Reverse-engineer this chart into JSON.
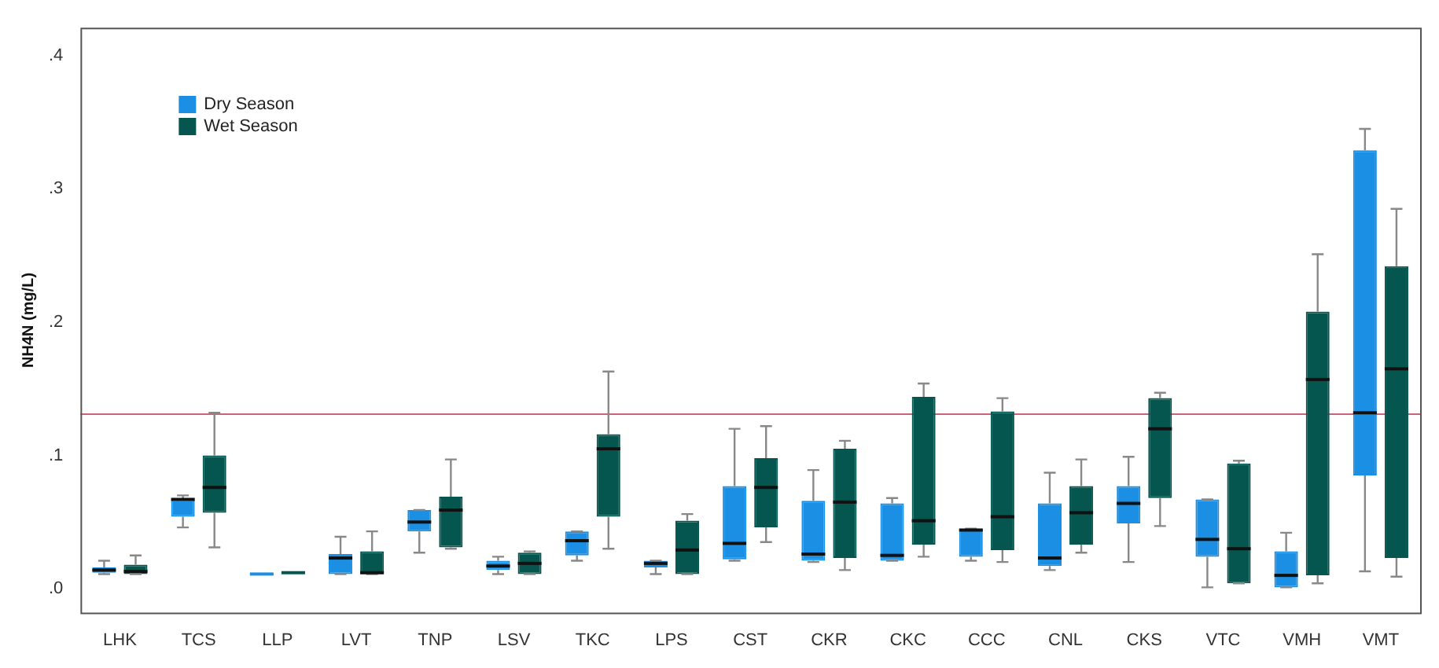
{
  "chart_data": {
    "type": "box",
    "ylabel": "NH4N (mg/L)",
    "categories": [
      "LHK",
      "TCS",
      "LLP",
      "LVT",
      "TNP",
      "LSV",
      "TKC",
      "LPS",
      "CST",
      "CKR",
      "CKC",
      "CCC",
      "CNL",
      "CKS",
      "VTC",
      "VMH",
      "VMT"
    ],
    "ylim": [
      -0.018,
      0.421
    ],
    "yticks": [
      {
        "value": 0,
        "label": ".0"
      },
      {
        "value": 0.1,
        "label": ".1"
      },
      {
        "value": 0.2,
        "label": ".2"
      },
      {
        "value": 0.3,
        "label": ".3"
      },
      {
        "value": 0.4,
        "label": ".4"
      }
    ],
    "legend": "top left",
    "ref_lines": [
      {
        "axis": "y",
        "value": 0.131,
        "color": "#c86478"
      }
    ],
    "series": [
      {
        "name": "Dry Season",
        "color": "#1a8fe3",
        "boxes": [
          {
            "low": 0.011,
            "q1": 0.012,
            "median": 0.014,
            "q3": 0.016,
            "high": 0.021
          },
          {
            "low": 0.046,
            "q1": 0.054,
            "median": 0.067,
            "q3": 0.067,
            "high": 0.07
          },
          {
            "low": 0.011,
            "q1": 0.011,
            "median": 0.011,
            "q3": 0.011,
            "high": 0.011
          },
          {
            "low": 0.011,
            "q1": 0.011,
            "median": 0.023,
            "q3": 0.026,
            "high": 0.039
          },
          {
            "low": 0.027,
            "q1": 0.043,
            "median": 0.05,
            "q3": 0.059,
            "high": 0.059
          },
          {
            "low": 0.011,
            "q1": 0.014,
            "median": 0.017,
            "q3": 0.021,
            "high": 0.024
          },
          {
            "low": 0.021,
            "q1": 0.025,
            "median": 0.036,
            "q3": 0.043,
            "high": 0.043
          },
          {
            "low": 0.011,
            "q1": 0.016,
            "median": 0.019,
            "q3": 0.021,
            "high": 0.021
          },
          {
            "low": 0.021,
            "q1": 0.022,
            "median": 0.034,
            "q3": 0.077,
            "high": 0.12
          },
          {
            "low": 0.02,
            "q1": 0.021,
            "median": 0.026,
            "q3": 0.066,
            "high": 0.089
          },
          {
            "low": 0.021,
            "q1": 0.021,
            "median": 0.025,
            "q3": 0.064,
            "high": 0.068
          },
          {
            "low": 0.021,
            "q1": 0.024,
            "median": 0.044,
            "q3": 0.045,
            "high": 0.045
          },
          {
            "low": 0.014,
            "q1": 0.017,
            "median": 0.023,
            "q3": 0.064,
            "high": 0.087
          },
          {
            "low": 0.02,
            "q1": 0.049,
            "median": 0.064,
            "q3": 0.077,
            "high": 0.099
          },
          {
            "low": 0.001,
            "q1": 0.024,
            "median": 0.037,
            "q3": 0.067,
            "high": 0.067
          },
          {
            "low": 0.001,
            "q1": 0.001,
            "median": 0.01,
            "q3": 0.028,
            "high": 0.042
          },
          {
            "low": 0.013,
            "q1": 0.085,
            "median": 0.132,
            "q3": 0.329,
            "high": 0.345
          }
        ]
      },
      {
        "name": "Wet Season",
        "color": "#04564f",
        "boxes": [
          {
            "low": 0.011,
            "q1": 0.011,
            "median": 0.013,
            "q3": 0.018,
            "high": 0.025
          },
          {
            "low": 0.031,
            "q1": 0.057,
            "median": 0.076,
            "q3": 0.1,
            "high": 0.132
          },
          {
            "low": 0.012,
            "q1": 0.012,
            "median": 0.012,
            "q3": 0.012,
            "high": 0.012
          },
          {
            "low": 0.011,
            "q1": 0.011,
            "median": 0.012,
            "q3": 0.028,
            "high": 0.043
          },
          {
            "low": 0.03,
            "q1": 0.031,
            "median": 0.059,
            "q3": 0.069,
            "high": 0.097
          },
          {
            "low": 0.011,
            "q1": 0.011,
            "median": 0.019,
            "q3": 0.027,
            "high": 0.028
          },
          {
            "low": 0.03,
            "q1": 0.054,
            "median": 0.105,
            "q3": 0.116,
            "high": 0.163
          },
          {
            "low": 0.011,
            "q1": 0.011,
            "median": 0.029,
            "q3": 0.051,
            "high": 0.056
          },
          {
            "low": 0.035,
            "q1": 0.046,
            "median": 0.076,
            "q3": 0.098,
            "high": 0.122
          },
          {
            "low": 0.014,
            "q1": 0.023,
            "median": 0.065,
            "q3": 0.105,
            "high": 0.111
          },
          {
            "low": 0.024,
            "q1": 0.033,
            "median": 0.051,
            "q3": 0.144,
            "high": 0.154
          },
          {
            "low": 0.02,
            "q1": 0.029,
            "median": 0.054,
            "q3": 0.133,
            "high": 0.143
          },
          {
            "low": 0.027,
            "q1": 0.033,
            "median": 0.057,
            "q3": 0.077,
            "high": 0.097
          },
          {
            "low": 0.047,
            "q1": 0.068,
            "median": 0.12,
            "q3": 0.143,
            "high": 0.147
          },
          {
            "low": 0.004,
            "q1": 0.004,
            "median": 0.03,
            "q3": 0.094,
            "high": 0.096
          },
          {
            "low": 0.004,
            "q1": 0.01,
            "median": 0.157,
            "q3": 0.208,
            "high": 0.251
          },
          {
            "low": 0.009,
            "q1": 0.023,
            "median": 0.165,
            "q3": 0.242,
            "high": 0.285
          }
        ]
      }
    ]
  }
}
